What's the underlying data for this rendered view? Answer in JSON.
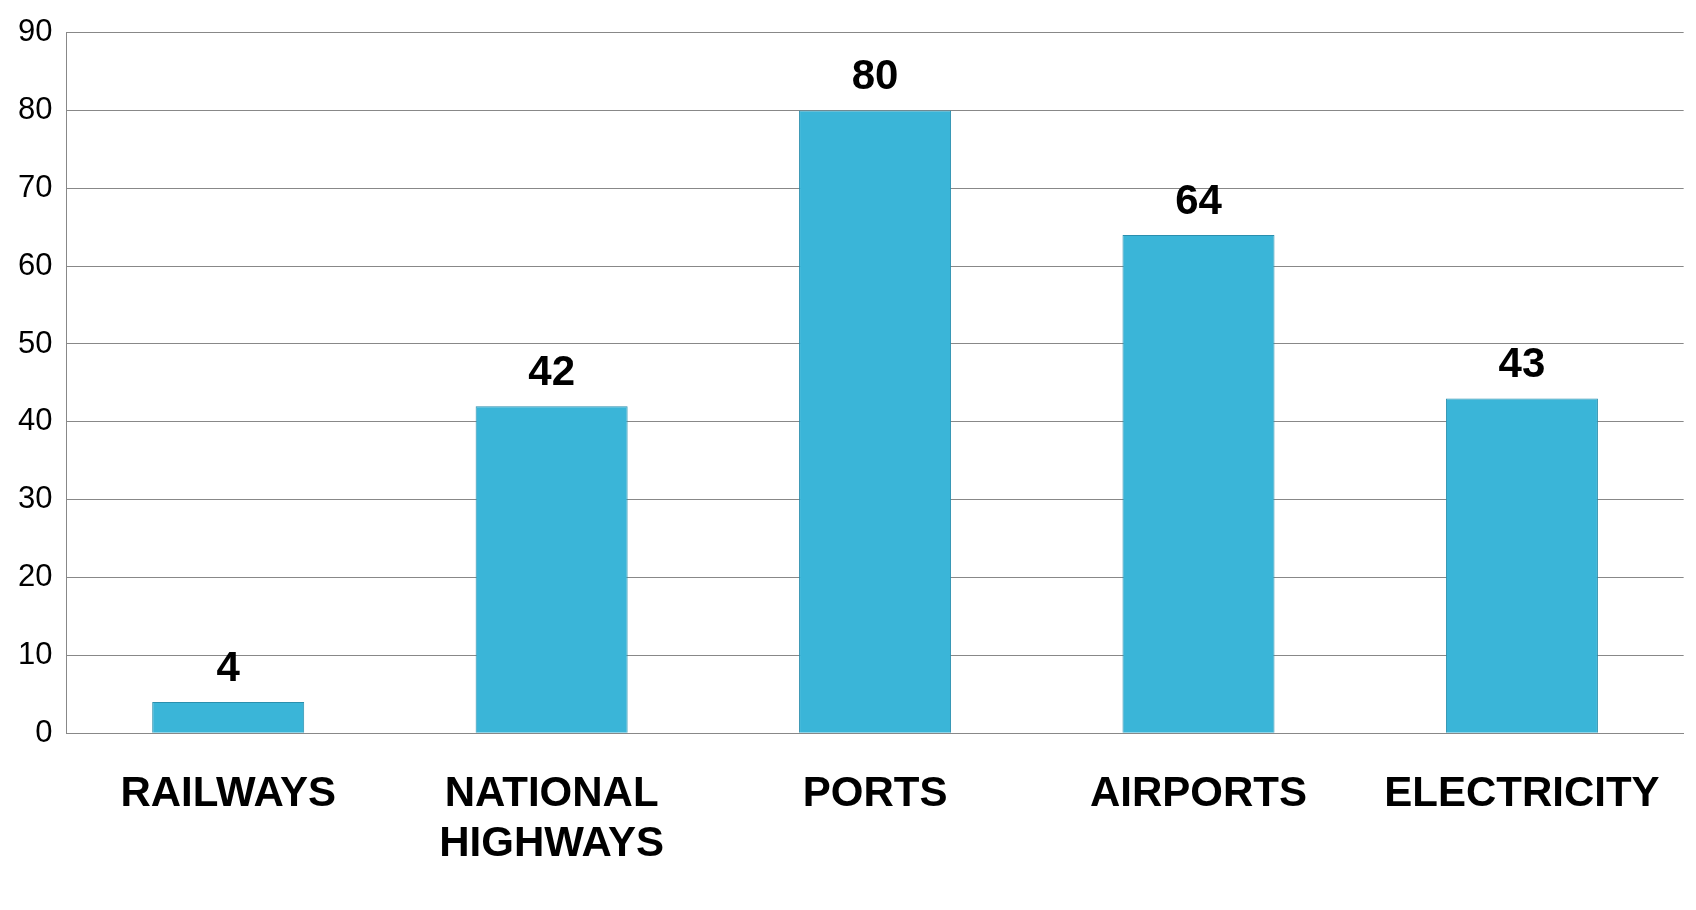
{
  "chart_data": {
    "type": "bar",
    "categories": [
      "RAILWAYS",
      "NATIONAL HIGHWAYS",
      "PORTS",
      "AIRPORTS",
      "ELECTRICITY"
    ],
    "values": [
      4,
      42,
      80,
      64,
      43
    ],
    "color": "#3ab5d8",
    "ylim": [
      0,
      90
    ],
    "yticks": [
      0,
      10,
      20,
      30,
      40,
      50,
      60,
      70,
      80,
      90
    ],
    "grid": "y",
    "data_labels": true
  }
}
